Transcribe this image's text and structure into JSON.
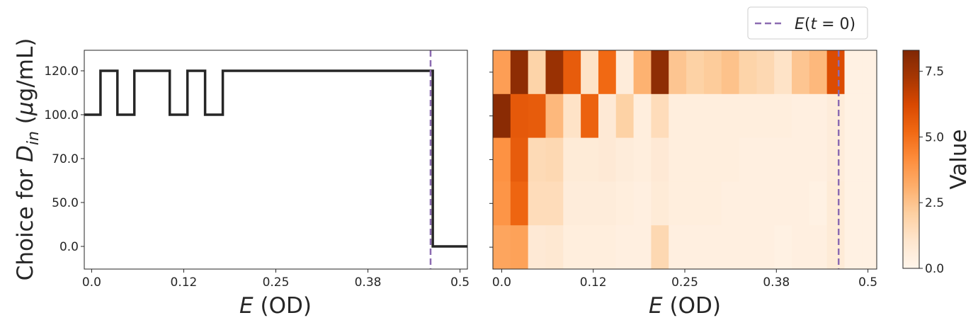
{
  "chart_data": [
    {
      "type": "line",
      "subtype": "step",
      "xlabel": "E (OD)",
      "ylabel": "Choice for D_in (μg/mL)",
      "xlim": [
        -0.01,
        0.51
      ],
      "x_ticks": [
        "0.0",
        "0.12",
        "0.25",
        "0.38",
        "0.5"
      ],
      "x_tick_values": [
        0,
        0.125,
        0.25,
        0.375,
        0.5
      ],
      "y_categories": [
        "0.0",
        "50.0",
        "70.0",
        "100.0",
        "120.0"
      ],
      "series": [
        {
          "color": "#262626",
          "x": [
            -0.01,
            0.012,
            0.012,
            0.035,
            0.035,
            0.058,
            0.058,
            0.106,
            0.106,
            0.13,
            0.13,
            0.154,
            0.154,
            0.178,
            0.178,
            0.463,
            0.463,
            0.51
          ],
          "y": [
            "100.0",
            "100.0",
            "120.0",
            "120.0",
            "100.0",
            "100.0",
            "120.0",
            "120.0",
            "100.0",
            "100.0",
            "120.0",
            "120.0",
            "100.0",
            "100.0",
            "120.0",
            "120.0",
            "0.0",
            "0.0"
          ]
        }
      ],
      "vline": {
        "x": 0.46,
        "color": "#8c6bb1",
        "style": "dashed"
      },
      "grid": false
    },
    {
      "type": "heatmap",
      "xlabel": "E (OD)",
      "x_ticks": [
        "0.0",
        "0.12",
        "0.25",
        "0.38",
        "0.5"
      ],
      "x_tick_values": [
        0,
        0.125,
        0.25,
        0.375,
        0.5
      ],
      "xlim": [
        -0.012,
        0.512
      ],
      "cell_width": 0.024,
      "y_categories": [
        "0.0",
        "50.0",
        "70.0",
        "100.0",
        "120.0"
      ],
      "values": [
        [
          3.6,
          7.9,
          1.9,
          7.6,
          5.6,
          1.2,
          5.2,
          0.6,
          3.0,
          7.9,
          2.4,
          2.0,
          2.2,
          2.5,
          1.9,
          1.7,
          1.2,
          2.4,
          2.8,
          6.1,
          0.3,
          0.3
        ],
        [
          8.0,
          5.7,
          5.6,
          2.8,
          1.2,
          5.4,
          0.8,
          2.0,
          0.5,
          1.5,
          0.5,
          0.5,
          0.5,
          0.5,
          0.5,
          0.5,
          0.5,
          0.4,
          0.4,
          0.6,
          0.3,
          0.3
        ],
        [
          4.0,
          5.6,
          1.6,
          1.7,
          0.7,
          0.7,
          0.8,
          0.6,
          0.5,
          0.8,
          0.5,
          0.5,
          0.5,
          0.5,
          0.4,
          0.4,
          0.4,
          0.4,
          0.4,
          0.6,
          0.3,
          0.3
        ],
        [
          3.9,
          5.3,
          1.5,
          1.5,
          0.6,
          0.6,
          0.6,
          0.5,
          0.4,
          0.7,
          0.5,
          0.5,
          0.5,
          0.4,
          0.4,
          0.4,
          0.4,
          0.4,
          0.3,
          0.7,
          0.3,
          0.3
        ],
        [
          3.4,
          3.5,
          0.8,
          0.9,
          0.5,
          0.5,
          0.5,
          0.4,
          0.4,
          1.7,
          0.4,
          0.4,
          0.4,
          0.4,
          0.4,
          0.4,
          0.3,
          0.4,
          0.4,
          0.7,
          0.3,
          0.3
        ]
      ],
      "row_order_note": "rows ordered top to bottom: 120.0, 100.0, 70.0, 50.0, 0.0",
      "colormap": "Oranges",
      "vmin": 0.0,
      "vmax": 8.3,
      "colorbar": {
        "label": "Value",
        "ticks": [
          "0.0",
          "2.5",
          "5.0",
          "7.5"
        ],
        "tick_values": [
          0,
          2.5,
          5.0,
          7.5
        ]
      },
      "vline": {
        "x": 0.46,
        "color": "#8c6bb1",
        "style": "dashed"
      }
    }
  ],
  "legend": {
    "entries": [
      {
        "label": "E(t = 0)",
        "color": "#8c6bb1",
        "style": "dashed"
      }
    ],
    "placement": "top-right"
  }
}
